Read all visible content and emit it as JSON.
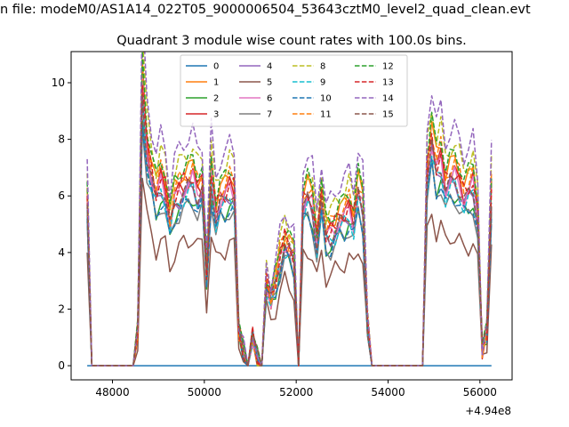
{
  "chart_data": {
    "type": "line",
    "suptitle": "n file: modeM0/AS1A14_022T05_9000006504_53643cztM0_level2_quad_clean.evt",
    "title": "Quadrant 3 module wise count rates with 100.0s bins.",
    "xlabel": "",
    "ylabel": "",
    "x_offset_label": "+4.94e8",
    "xlim": [
      47100,
      56700
    ],
    "ylim": [
      -0.5,
      11.1
    ],
    "xticks": [
      48000,
      50000,
      52000,
      54000,
      56000
    ],
    "xtick_labels": [
      "48000",
      "50000",
      "52000",
      "54000",
      "56000"
    ],
    "yticks": [
      0,
      2,
      4,
      6,
      8,
      10
    ],
    "ytick_labels": [
      "0",
      "2",
      "4",
      "6",
      "8",
      "10"
    ],
    "grid": false,
    "legend_position": "upper-center",
    "legend_columns": 4,
    "x": [
      47450,
      47550,
      48450,
      48550,
      48650,
      48750,
      48850,
      48950,
      49050,
      49150,
      49250,
      49350,
      49450,
      49550,
      49650,
      49750,
      49850,
      49950,
      50050,
      50150,
      50250,
      50350,
      50450,
      50550,
      50650,
      50750,
      50850,
      50950,
      51050,
      51150,
      51250,
      51350,
      51450,
      51550,
      51650,
      51750,
      51850,
      51950,
      52050,
      52150,
      52250,
      52350,
      52450,
      52550,
      52650,
      52750,
      52850,
      52950,
      53050,
      53150,
      53250,
      53350,
      53450,
      53550,
      53650,
      53750,
      54750,
      54850,
      54950,
      55050,
      55150,
      55250,
      55350,
      55450,
      55550,
      55650,
      55750,
      55850,
      55950,
      56050,
      56150,
      56250
    ],
    "base_profile": [
      1.0,
      0.0,
      0.0,
      0.2,
      1.7,
      1.3,
      1.15,
      1.02,
      1.12,
      1.06,
      0.85,
      1.0,
      1.05,
      1.08,
      1.1,
      1.13,
      1.05,
      1.08,
      0.55,
      1.15,
      0.92,
      1.0,
      1.02,
      1.08,
      1.05,
      0.2,
      0.1,
      0.0,
      0.18,
      0.05,
      0.0,
      0.5,
      0.4,
      0.5,
      0.65,
      0.75,
      0.7,
      0.65,
      0.0,
      0.97,
      1.02,
      0.97,
      0.75,
      1.0,
      0.78,
      0.8,
      0.84,
      0.88,
      0.9,
      0.95,
      0.87,
      1.05,
      0.95,
      0.25,
      0.0,
      0.0,
      0.0,
      1.15,
      1.35,
      1.18,
      1.25,
      1.08,
      1.13,
      1.15,
      1.1,
      1.02,
      1.05,
      1.1,
      0.9,
      0.1,
      0.2,
      1.05
    ],
    "series": [
      {
        "name": "0",
        "color": "#1f77b4",
        "dashed": false,
        "scale": 0.0
      },
      {
        "name": "1",
        "color": "#ff7f0e",
        "dashed": false,
        "scale": 6.3
      },
      {
        "name": "2",
        "color": "#2ca02c",
        "dashed": false,
        "scale": 5.3
      },
      {
        "name": "3",
        "color": "#d62728",
        "dashed": false,
        "scale": 5.9
      },
      {
        "name": "4",
        "color": "#9467bd",
        "dashed": false,
        "scale": 5.6
      },
      {
        "name": "5",
        "color": "#8c564b",
        "dashed": false,
        "scale": 4.0
      },
      {
        "name": "6",
        "color": "#e377c2",
        "dashed": false,
        "scale": 5.8
      },
      {
        "name": "7",
        "color": "#7f7f7f",
        "dashed": false,
        "scale": 5.1
      },
      {
        "name": "8",
        "color": "#bcbd22",
        "dashed": true,
        "scale": 6.8
      },
      {
        "name": "9",
        "color": "#17becf",
        "dashed": true,
        "scale": 5.5
      },
      {
        "name": "10",
        "color": "#1f77b4",
        "dashed": true,
        "scale": 5.2
      },
      {
        "name": "11",
        "color": "#ff7f0e",
        "dashed": true,
        "scale": 6.2
      },
      {
        "name": "12",
        "color": "#2ca02c",
        "dashed": true,
        "scale": 6.5
      },
      {
        "name": "13",
        "color": "#d62728",
        "dashed": true,
        "scale": 6.0
      },
      {
        "name": "14",
        "color": "#9467bd",
        "dashed": true,
        "scale": 7.3
      },
      {
        "name": "15",
        "color": "#8c564b",
        "dashed": true,
        "scale": 5.7
      }
    ]
  }
}
